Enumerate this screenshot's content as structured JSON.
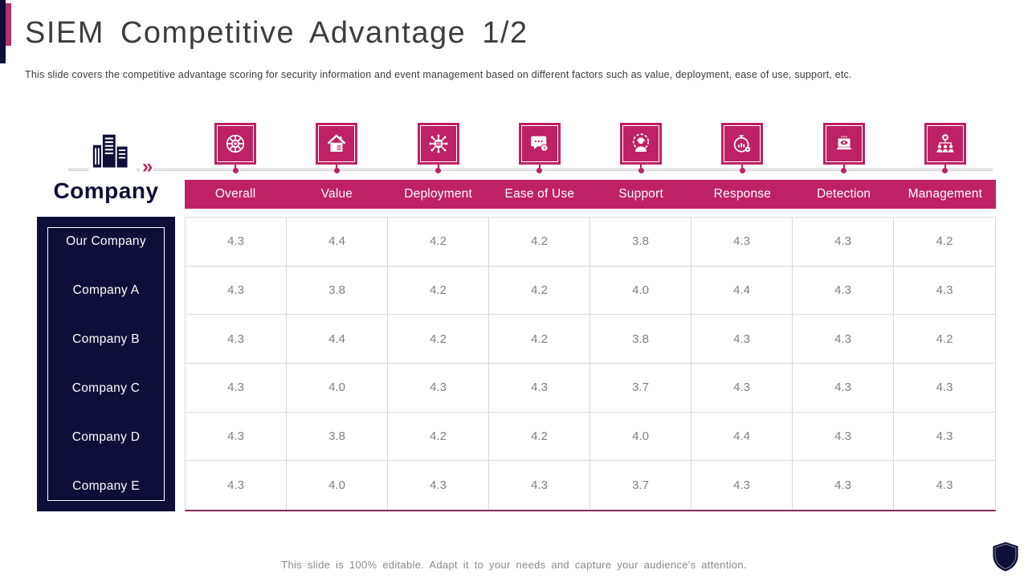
{
  "slide": {
    "title": "SIEM Competitive Advantage 1/2",
    "subtitle": "This slide covers the competitive advantage scoring for security information and event management based on different factors such as value, deployment, ease of use, support, etc.",
    "footer": "This slide is 100% editable. Adapt it to your needs and capture your audience's attention.",
    "chevron_glyph": "»"
  },
  "colors": {
    "accent_pink": "#BE2164",
    "accent_navy": "#0E0E38",
    "score_text": "#7F7F7F",
    "grid_line": "#DADADE",
    "table_bottom_line": "#7E2A52"
  },
  "table": {
    "row_header_title": "Company",
    "columns": [
      {
        "label": "Overall",
        "icon": "overall-icon"
      },
      {
        "label": "Value",
        "icon": "value-icon"
      },
      {
        "label": "Deployment",
        "icon": "deployment-icon"
      },
      {
        "label": "Ease of Use",
        "icon": "ease-of-use-icon"
      },
      {
        "label": "Support",
        "icon": "support-icon"
      },
      {
        "label": "Response",
        "icon": "response-icon"
      },
      {
        "label": "Detection",
        "icon": "detection-icon"
      },
      {
        "label": "Management",
        "icon": "management-icon"
      }
    ],
    "rows": [
      {
        "company": "Our Company",
        "values": [
          "4.3",
          "4.4",
          "4.2",
          "4.2",
          "3.8",
          "4.3",
          "4.3",
          "4.2"
        ]
      },
      {
        "company": "Company A",
        "values": [
          "4.3",
          "3.8",
          "4.2",
          "4.2",
          "4.0",
          "4.4",
          "4.3",
          "4.3"
        ]
      },
      {
        "company": "Company B",
        "values": [
          "4.3",
          "4.4",
          "4.2",
          "4.2",
          "3.8",
          "4.3",
          "4.3",
          "4.2"
        ]
      },
      {
        "company": "Company C",
        "values": [
          "4.3",
          "4.0",
          "4.3",
          "4.3",
          "3.7",
          "4.3",
          "4.3",
          "4.3"
        ]
      },
      {
        "company": "Company D",
        "values": [
          "4.3",
          "3.8",
          "4.2",
          "4.2",
          "4.0",
          "4.4",
          "4.3",
          "4.3"
        ]
      },
      {
        "company": "Company E",
        "values": [
          "4.3",
          "4.0",
          "4.3",
          "4.3",
          "3.7",
          "4.3",
          "4.3",
          "4.3"
        ]
      }
    ]
  }
}
